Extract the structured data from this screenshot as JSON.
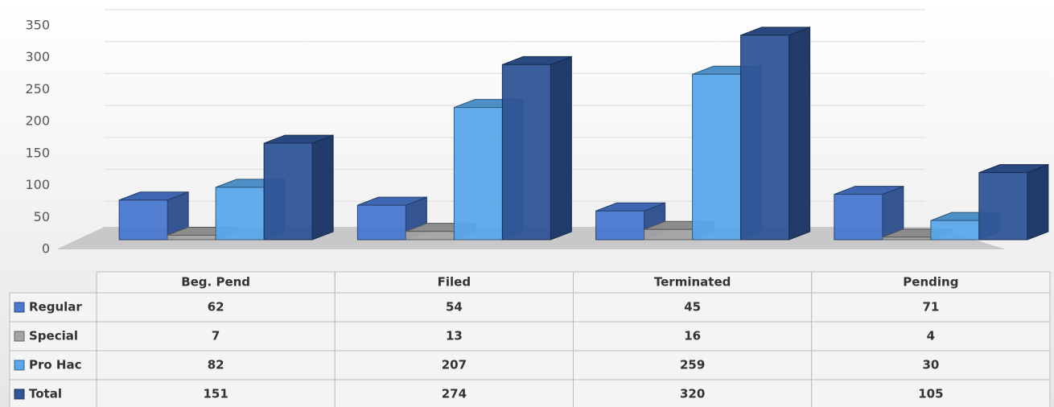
{
  "chart_data": {
    "type": "bar3d",
    "categories": [
      "Beg. Pend",
      "Filed",
      "Terminated",
      "Pending"
    ],
    "series": [
      {
        "name": "Regular",
        "color": "#4a78d0",
        "values": [
          62,
          54,
          45,
          71
        ]
      },
      {
        "name": "Special",
        "color": "#a5a5a5",
        "values": [
          7,
          13,
          16,
          4
        ]
      },
      {
        "name": "Pro Hac",
        "color": "#5aa8ea",
        "values": [
          82,
          207,
          259,
          30
        ]
      },
      {
        "name": "Total",
        "color": "#2f5597",
        "values": [
          151,
          274,
          320,
          105
        ]
      }
    ],
    "ylim": [
      0,
      350
    ],
    "yticks": [
      0,
      50,
      100,
      150,
      200,
      250,
      300,
      350
    ],
    "grid": true,
    "data_table": true
  }
}
